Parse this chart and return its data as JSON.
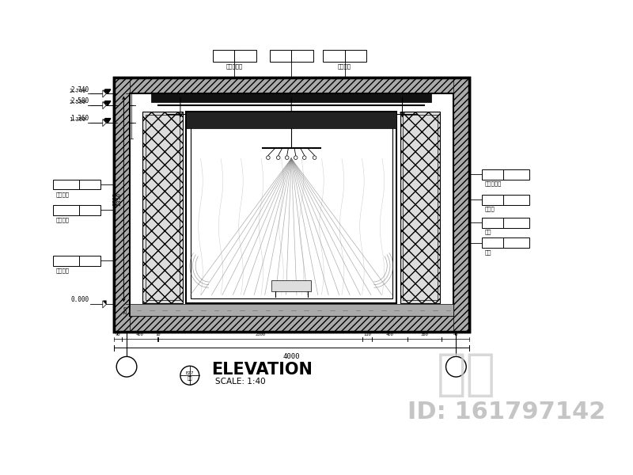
{
  "bg_color": "#ffffff",
  "line_color": "#000000",
  "title": "ELEVATION",
  "subtitle": "SCALE: 1:40",
  "watermark_zh": "知末",
  "watermark_id": "ID: 161797142"
}
